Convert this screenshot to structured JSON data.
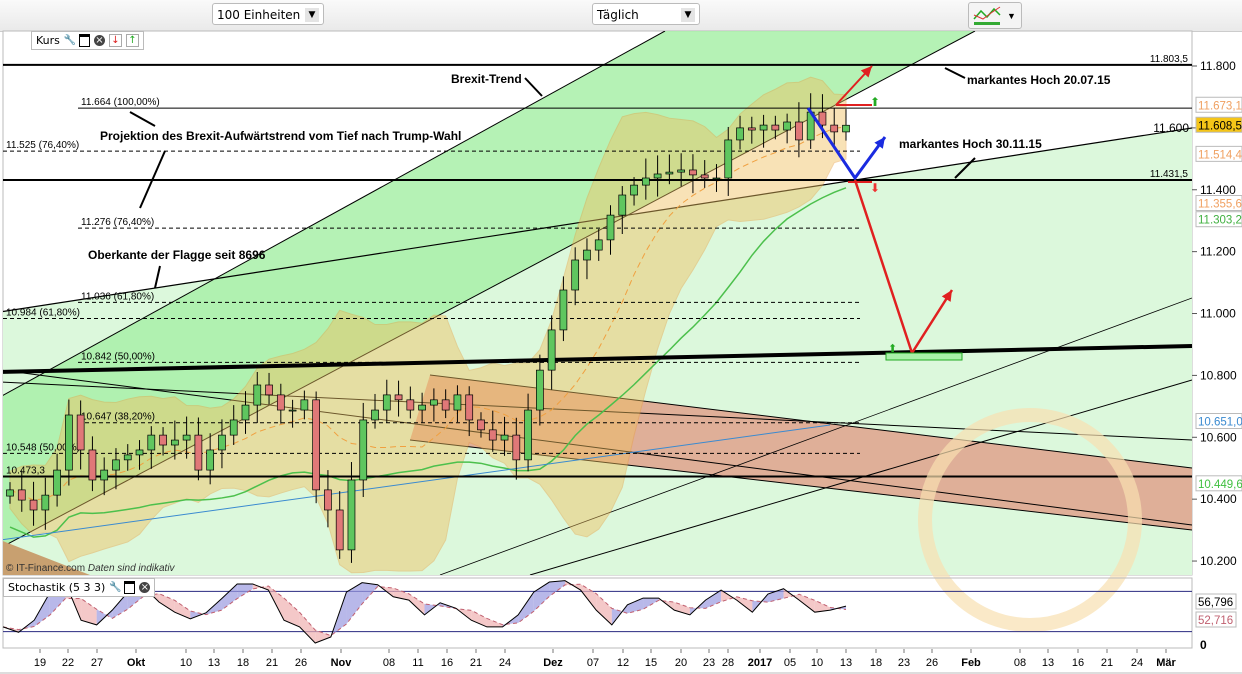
{
  "toolbar": {
    "units": "100 Einheiten",
    "interval": "Täglich"
  },
  "main_panel": {
    "label": "Kurs"
  },
  "stoch_panel": {
    "label": "Stochastik (5 3 3)"
  },
  "copyright": "© IT-Finance.com",
  "disclaimer": "Daten sind indikativ",
  "colors": {
    "up": "#5fc65f",
    "down": "#e07878",
    "brexit_channel": "#a8f0a8",
    "flag_area": "#dcf8dc",
    "bollinger": "#f0c060",
    "down_channel": "#e0907a",
    "arrow_red": "#e02020",
    "arrow_blue": "#1a2be0"
  },
  "chart_data": {
    "type": "candlestick",
    "ylim": [
      10150,
      11900
    ],
    "y_ticks": [
      "11.800",
      "11.600",
      "11.400",
      "11.200",
      "11.000",
      "10.800",
      "10.600",
      "10.400",
      "10.200"
    ],
    "y_tick_values": [
      11800,
      11600,
      11400,
      11200,
      11000,
      10800,
      10600,
      10400,
      10200
    ],
    "x_ticks": [
      "19",
      "22",
      "27",
      "Okt",
      "10",
      "13",
      "18",
      "21",
      "26",
      "Nov",
      "08",
      "11",
      "16",
      "21",
      "24",
      "Dez",
      "07",
      "12",
      "15",
      "20",
      "23",
      "28",
      "2017",
      "05",
      "10",
      "13",
      "18",
      "23",
      "26",
      "Feb",
      "08",
      "13",
      "16",
      "21",
      "24",
      "Mär"
    ],
    "closes": [
      10430,
      10397,
      10365,
      10413,
      10494,
      10672,
      10559,
      10462,
      10494,
      10527,
      10543,
      10559,
      10607,
      10575,
      10591,
      10607,
      10494,
      10559,
      10607,
      10656,
      10704,
      10769,
      10737,
      10688,
      10688,
      10721,
      10430,
      10365,
      10236,
      10462,
      10656,
      10688,
      10737,
      10721,
      10688,
      10704,
      10721,
      10688,
      10737,
      10656,
      10624,
      10591,
      10607,
      10527,
      10688,
      10817,
      10947,
      11076,
      11173,
      11205,
      11238,
      11318,
      11383,
      11415,
      11438,
      11451,
      11457,
      11464,
      11448,
      11438,
      11438,
      11561,
      11600,
      11593,
      11609,
      11593,
      11619,
      11561,
      11651,
      11609,
      11587,
      11608.5
    ],
    "levels": [
      {
        "value": 11803.5,
        "label": "11.803,5",
        "style": "solid-thick"
      },
      {
        "value": 11664,
        "label": "11.664 (100,00%)",
        "style": "solid"
      },
      {
        "value": 11525,
        "label": "11.525 (76,40%)",
        "style": "dashed"
      },
      {
        "value": 11431.5,
        "label": "11.431,5",
        "style": "solid-thick"
      },
      {
        "value": 11276,
        "label": "11.276 (76,40%)",
        "style": "dashed"
      },
      {
        "value": 11036,
        "label": "11.036 (61,80%)",
        "style": "dashed"
      },
      {
        "value": 10984,
        "label": "10.984 (61,80%)",
        "style": "dashed"
      },
      {
        "value": 10842,
        "label": "10.842 (50,00%)",
        "style": "dashed"
      },
      {
        "value": 10647,
        "label": "10.647 (38,20%)",
        "style": "dashed"
      },
      {
        "value": 10548,
        "label": "10.548 (50,00%)",
        "style": "dashed"
      },
      {
        "value": 10473.3,
        "label": "10.473,3",
        "style": "solid-thick"
      }
    ],
    "price_tags": [
      {
        "value": 11673.1,
        "label": "11.673,1",
        "color": "#f0a060",
        "bg": "#fff"
      },
      {
        "value": 11608.5,
        "label": "11.608,5",
        "color": "#000",
        "bg": "#f5c518"
      },
      {
        "value": 11514.4,
        "label": "11.514,4",
        "color": "#f0a060",
        "bg": "#fff"
      },
      {
        "value": 11355.6,
        "label": "11.355,6",
        "color": "#f0a060",
        "bg": "#fff"
      },
      {
        "value": 11303.2,
        "label": "11.303,2",
        "color": "#40b040",
        "bg": "#fff"
      },
      {
        "value": 10651.0,
        "label": "10.651,0",
        "color": "#3a8ad0",
        "bg": "#fff"
      },
      {
        "value": 10449.6,
        "label": "10.449,6",
        "color": "#40c040",
        "bg": "#fff"
      }
    ],
    "annotations": {
      "brexit_trend": "Brexit-Trend",
      "high_2015_07": "markantes Hoch 20.07.15",
      "high_2015_11": "markantes Hoch 30.11.15",
      "projection": "Projektion des  Brexit-Aufwärtstrend vom Tief nach Trump-Wahl",
      "flag_top": "Oberkante der Flagge seit 8696"
    },
    "stochastic": {
      "ylim": [
        0,
        100
      ],
      "levels": [
        80,
        20
      ],
      "y_ticks": [
        "0"
      ],
      "k_values": [
        27,
        19,
        37,
        78,
        93,
        37,
        30,
        52,
        79,
        87,
        64,
        49,
        39,
        48,
        69,
        91,
        91,
        82,
        37,
        27,
        3,
        12,
        79,
        93,
        90,
        72,
        67,
        45,
        63,
        55,
        37,
        27,
        27,
        45,
        79,
        94,
        96,
        82,
        52,
        30,
        60,
        70,
        70,
        52,
        45,
        67,
        82,
        67,
        49,
        76,
        84,
        67,
        49,
        52,
        58
      ],
      "tags": [
        {
          "label": "56,796",
          "color": "#000"
        },
        {
          "label": "52,716",
          "color": "#c06070"
        }
      ]
    }
  }
}
